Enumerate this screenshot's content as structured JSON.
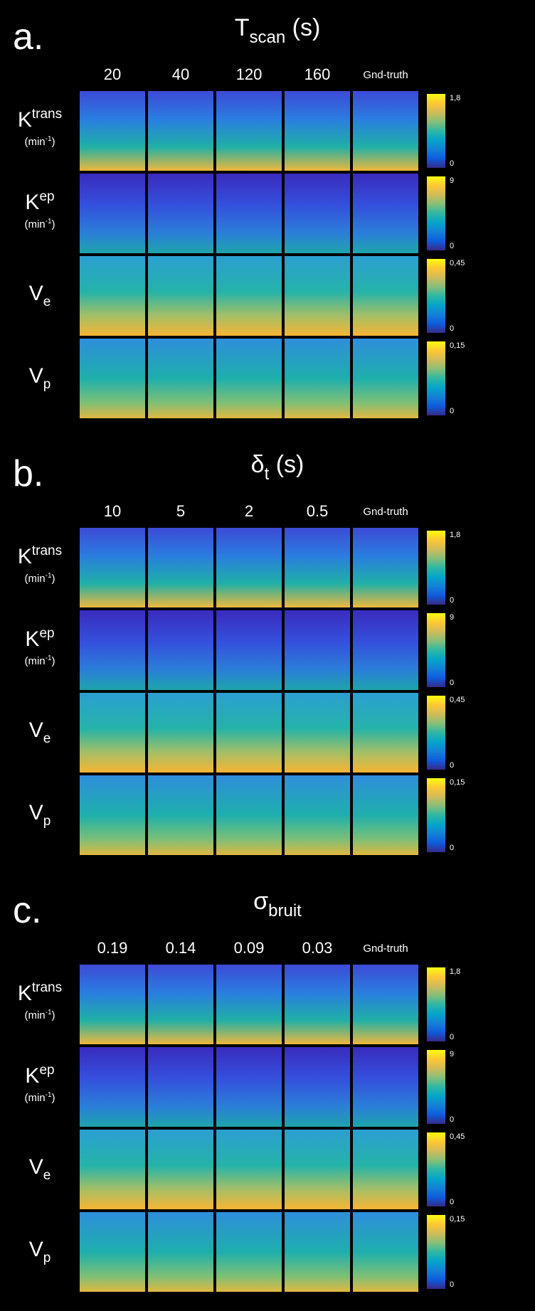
{
  "panels": [
    {
      "letter": "a.",
      "title": {
        "symbol": "T",
        "subscript": "scan",
        "unit": "(s)"
      },
      "columns": [
        "20",
        "40",
        "120",
        "160",
        "Gnd-truth"
      ],
      "rows": [
        {
          "symbol": "K",
          "superscript": "trans",
          "unit": "(min",
          "unit_superscript": "-1",
          "unit_close": ")",
          "scale_max": "1,8",
          "scale_min": "0"
        },
        {
          "symbol": "K",
          "superscript": "ep",
          "unit": "(min",
          "unit_superscript": "-1",
          "unit_close": ")",
          "scale_max": "9",
          "scale_min": "0"
        },
        {
          "symbol": "V",
          "subscript": "e",
          "scale_max": "0,45",
          "scale_min": "0"
        },
        {
          "symbol": "V",
          "subscript": "p",
          "scale_max": "0,15",
          "scale_min": "0"
        }
      ]
    },
    {
      "letter": "b.",
      "title": {
        "symbol": "δ",
        "subscript": "t",
        "unit": "(s)"
      },
      "columns": [
        "10",
        "5",
        "2",
        "0.5",
        "Gnd-truth"
      ],
      "rows": [
        {
          "symbol": "K",
          "superscript": "trans",
          "unit": "(min",
          "unit_superscript": "-1",
          "unit_close": ")",
          "scale_max": "1,8",
          "scale_min": "0"
        },
        {
          "symbol": "K",
          "superscript": "ep",
          "unit": "(min",
          "unit_superscript": "-1",
          "unit_close": ")",
          "scale_max": "9",
          "scale_min": "0"
        },
        {
          "symbol": "V",
          "subscript": "e",
          "scale_max": "0,45",
          "scale_min": "0"
        },
        {
          "symbol": "V",
          "subscript": "p",
          "scale_max": "0,15",
          "scale_min": "0"
        }
      ]
    },
    {
      "letter": "c.",
      "title": {
        "symbol": "σ",
        "subscript": "bruit"
      },
      "columns": [
        "0.19",
        "0.14",
        "0.09",
        "0.03",
        "Gnd-truth"
      ],
      "rows": [
        {
          "symbol": "K",
          "superscript": "trans",
          "unit": "(min",
          "unit_superscript": "-1",
          "unit_close": ")",
          "scale_max": "1,8",
          "scale_min": "0"
        },
        {
          "symbol": "K",
          "superscript": "ep",
          "unit": "(min",
          "unit_superscript": "-1",
          "unit_close": ")",
          "scale_max": "9",
          "scale_min": "0"
        },
        {
          "symbol": "V",
          "subscript": "e",
          "scale_max": "0,45",
          "scale_min": "0"
        },
        {
          "symbol": "V",
          "subscript": "p",
          "scale_max": "0,15",
          "scale_min": "0"
        }
      ]
    }
  ]
}
